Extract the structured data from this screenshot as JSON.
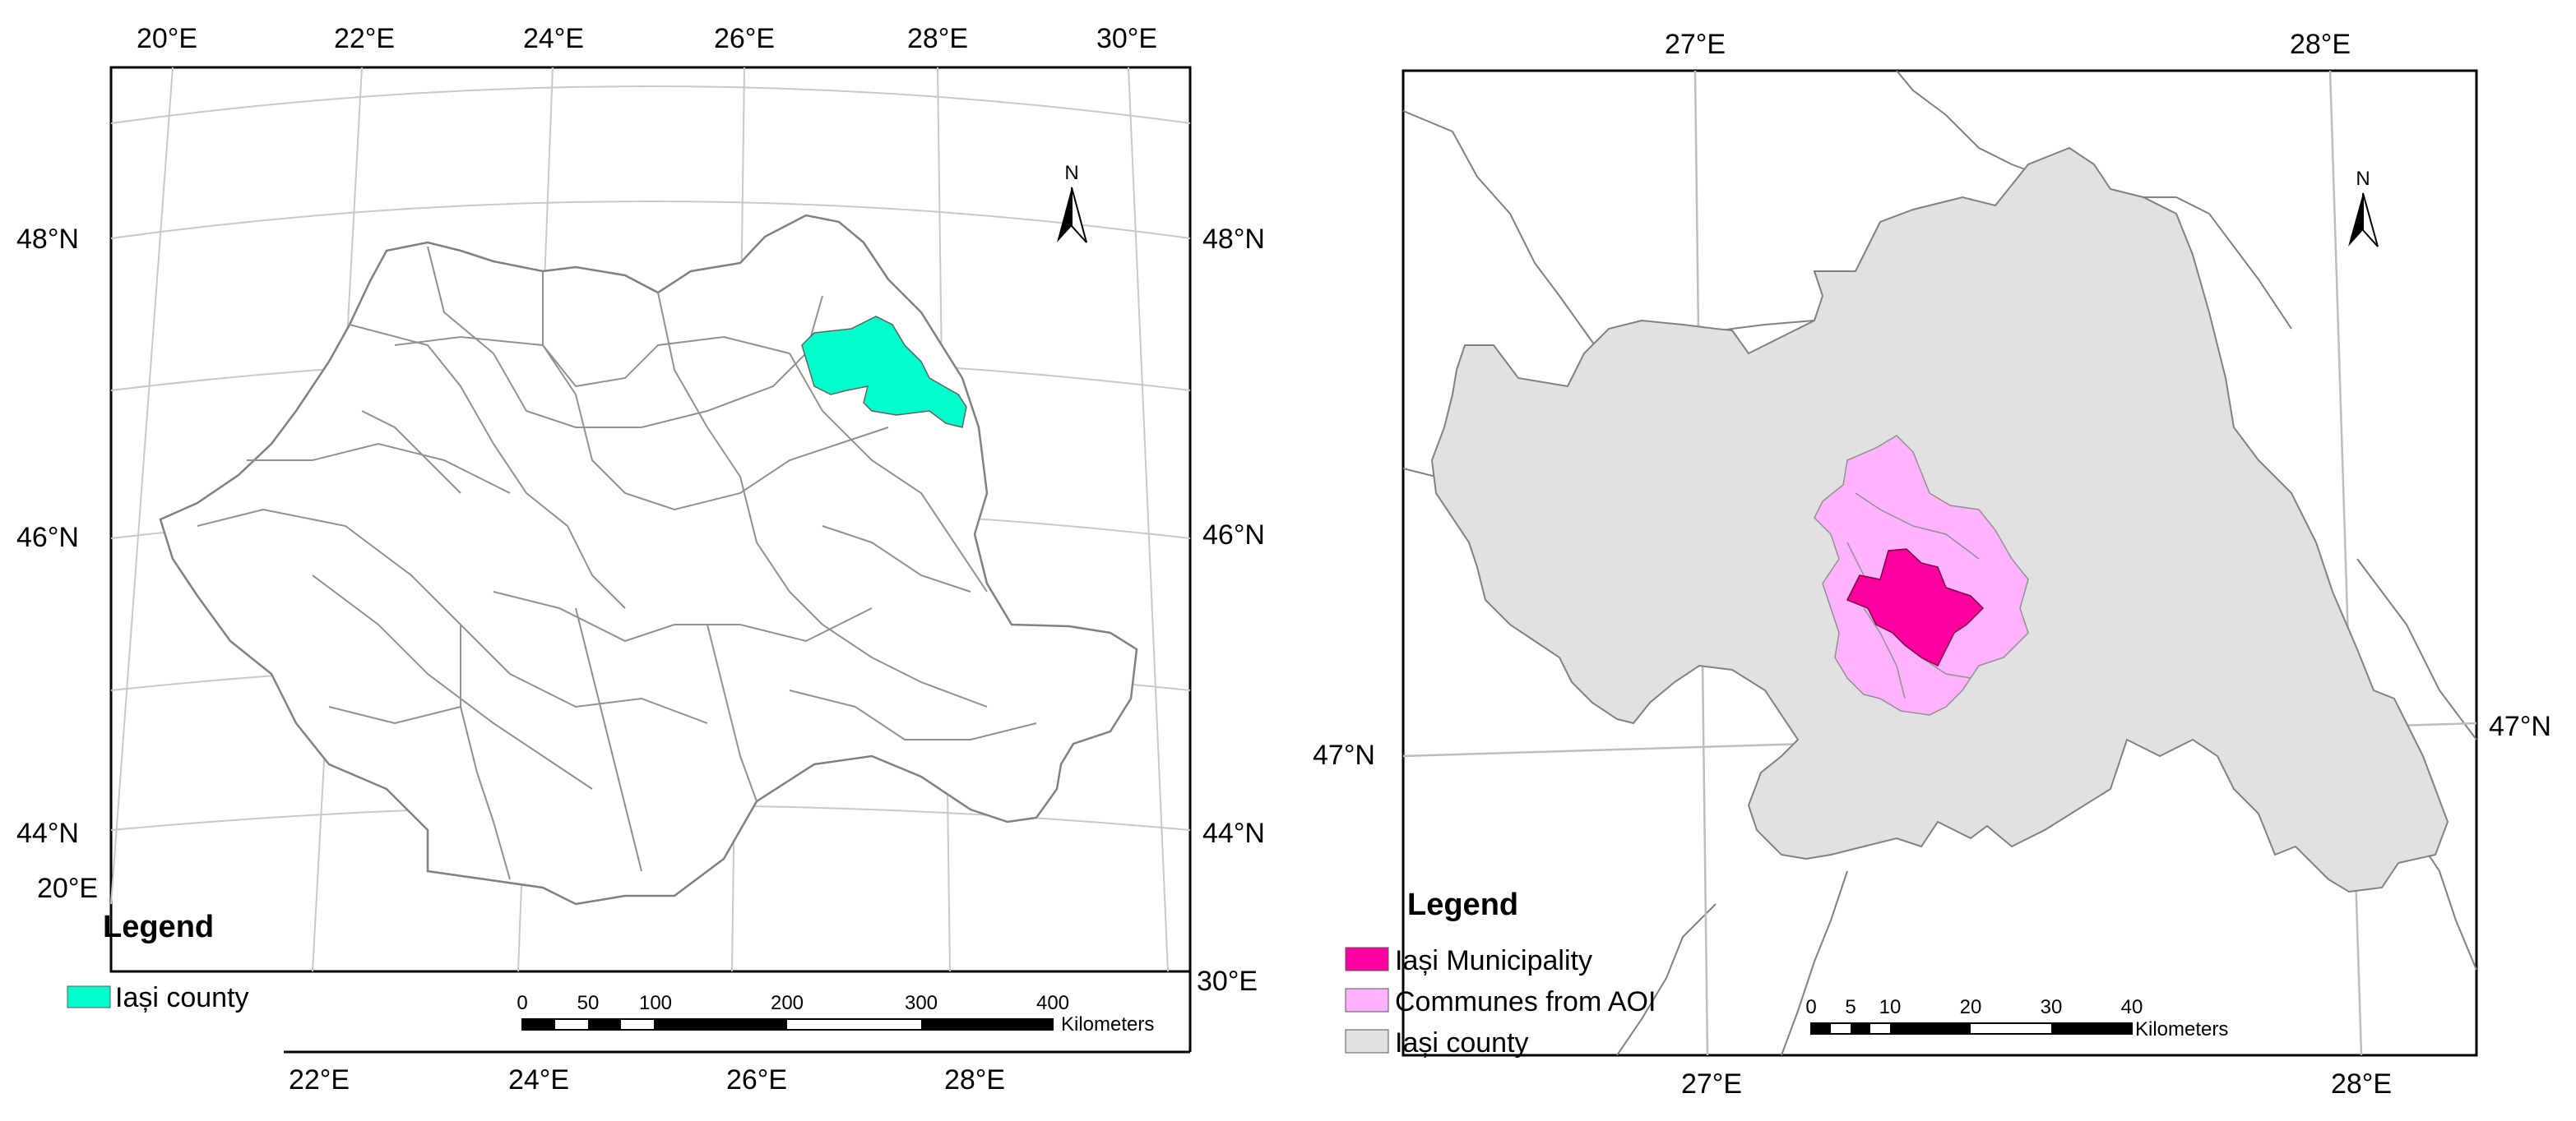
{
  "colors": {
    "iasi_county_highlight": "#00FFCC",
    "iasi_municipality": "#FF00A0",
    "communes_aoi": "#FFB3FF",
    "iasi_county_fill": "#E1E1E1",
    "graticule": "#C8C8C8",
    "boundary": "#808080"
  },
  "left_map": {
    "top_lon_labels": [
      "20°E",
      "22°E",
      "24°E",
      "26°E",
      "28°E",
      "30°E"
    ],
    "bottom_lon_labels": [
      "22°E",
      "24°E",
      "26°E",
      "28°E"
    ],
    "left_lat_labels": [
      "48°N",
      "46°N",
      "44°N"
    ],
    "right_lat_labels": [
      "48°N",
      "46°N",
      "44°N"
    ],
    "corner_left_label": "20°E",
    "corner_right_label": "30°E",
    "north_arrow_label": "N",
    "legend": {
      "title": "Legend",
      "items": [
        {
          "label": "Iași county",
          "color": "#00FFCC"
        }
      ]
    },
    "scale_bar": {
      "ticks": [
        "0",
        "50",
        "100",
        "200",
        "300",
        "400"
      ],
      "unit": "Kilometers"
    }
  },
  "right_map": {
    "top_lon_labels": [
      "27°E",
      "28°E"
    ],
    "bottom_lon_labels": [
      "27°E",
      "28°E"
    ],
    "left_lat_label": "47°N",
    "right_lat_label": "47°N",
    "north_arrow_label": "N",
    "legend": {
      "title": "Legend",
      "items": [
        {
          "label": "Iași Municipality",
          "color": "#FF00A0"
        },
        {
          "label": "Communes from AOI",
          "color": "#FFB3FF"
        },
        {
          "label": "Iași county",
          "color": "#E1E1E1"
        }
      ]
    },
    "scale_bar": {
      "ticks": [
        "0",
        "5",
        "10",
        "20",
        "30",
        "40"
      ],
      "unit": "Kilometers"
    }
  }
}
